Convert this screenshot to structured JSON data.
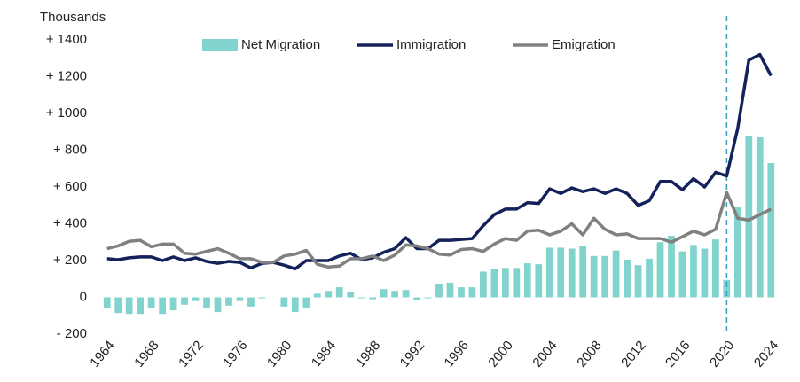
{
  "chart_data": {
    "type": "bar-line",
    "ylabel": "Thousands",
    "x": [
      1964,
      1965,
      1966,
      1967,
      1968,
      1969,
      1970,
      1971,
      1972,
      1973,
      1974,
      1975,
      1976,
      1977,
      1978,
      1979,
      1980,
      1981,
      1982,
      1983,
      1984,
      1985,
      1986,
      1987,
      1988,
      1989,
      1990,
      1991,
      1992,
      1993,
      1994,
      1995,
      1996,
      1997,
      1998,
      1999,
      2000,
      2001,
      2002,
      2003,
      2004,
      2005,
      2006,
      2007,
      2008,
      2009,
      2010,
      2011,
      2012,
      2013,
      2014,
      2015,
      2016,
      2017,
      2018,
      2019,
      2020,
      2021,
      2022,
      2023,
      2024
    ],
    "xlim": [
      1963.3,
      2024.7
    ],
    "xticks": [
      1964,
      1968,
      1972,
      1976,
      1980,
      1984,
      1988,
      1992,
      1996,
      2000,
      2004,
      2008,
      2012,
      2016,
      2020,
      2024
    ],
    "ylim": [
      -200,
      1400
    ],
    "yticks": [
      {
        "value": -200,
        "label": "- 200"
      },
      0,
      {
        "value": 200,
        "label": "+ 200"
      },
      {
        "value": 400,
        "label": "+ 400"
      },
      {
        "value": 600,
        "label": "+ 600"
      },
      {
        "value": 800,
        "label": "+ 800"
      },
      {
        "value": 1000,
        "label": "+ 1000"
      },
      {
        "value": 1200,
        "label": "+ 1200"
      },
      {
        "value": 1400,
        "label": "+ 1400"
      }
    ],
    "vline": 2020,
    "series": [
      {
        "name": "Net Migration",
        "kind": "bar",
        "color": "#80d4cd",
        "values": [
          -60,
          -85,
          -90,
          -90,
          -55,
          -90,
          -70,
          -40,
          -20,
          -55,
          -80,
          -45,
          -20,
          -50,
          -5,
          0,
          -50,
          -80,
          -55,
          20,
          35,
          55,
          30,
          -5,
          -10,
          45,
          35,
          40,
          -15,
          -5,
          75,
          80,
          55,
          55,
          140,
          155,
          160,
          160,
          185,
          180,
          270,
          270,
          265,
          280,
          225,
          225,
          255,
          205,
          175,
          210,
          300,
          335,
          250,
          285,
          265,
          315,
          95,
          490,
          875,
          870,
          730
        ]
      },
      {
        "name": "Immigration",
        "kind": "line",
        "color": "#14215a",
        "values": [
          210,
          205,
          215,
          220,
          220,
          200,
          220,
          200,
          215,
          195,
          185,
          195,
          190,
          160,
          185,
          190,
          175,
          155,
          200,
          200,
          200,
          225,
          240,
          205,
          215,
          245,
          265,
          325,
          265,
          265,
          310,
          310,
          315,
          320,
          390,
          450,
          480,
          480,
          515,
          510,
          590,
          565,
          595,
          575,
          590,
          565,
          590,
          565,
          500,
          525,
          630,
          630,
          585,
          645,
          600,
          680,
          660,
          920,
          1290,
          1320,
          1205
        ]
      },
      {
        "name": "Emigration",
        "kind": "line",
        "color": "#808080",
        "values": [
          265,
          280,
          305,
          310,
          275,
          290,
          290,
          240,
          235,
          250,
          265,
          240,
          210,
          210,
          190,
          190,
          225,
          235,
          255,
          180,
          165,
          170,
          210,
          210,
          225,
          200,
          230,
          285,
          280,
          265,
          235,
          230,
          260,
          265,
          250,
          290,
          320,
          310,
          360,
          365,
          340,
          360,
          400,
          340,
          430,
          370,
          340,
          345,
          320,
          320,
          320,
          300,
          330,
          360,
          340,
          370,
          570,
          430,
          420,
          450,
          480
        ]
      }
    ]
  }
}
